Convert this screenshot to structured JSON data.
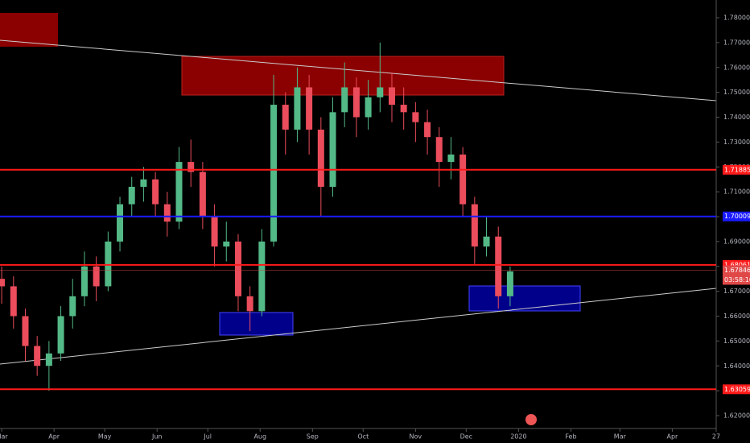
{
  "chart_data": {
    "type": "candlestick",
    "x": [
      0,
      7,
      14,
      21,
      28,
      35,
      42,
      49,
      56,
      63,
      70,
      77,
      84,
      91,
      98,
      105,
      112,
      119,
      126,
      133,
      140,
      147,
      154,
      161,
      168,
      175,
      182,
      189,
      196,
      203,
      210,
      217,
      224,
      231,
      238,
      245,
      252,
      259,
      266,
      273,
      280,
      287,
      294,
      301
    ],
    "open": [
      1.675,
      1.672,
      1.66,
      1.648,
      1.64,
      1.645,
      1.66,
      1.668,
      1.68,
      1.672,
      1.69,
      1.705,
      1.712,
      1.715,
      1.705,
      1.698,
      1.722,
      1.718,
      1.7,
      1.688,
      1.69,
      1.668,
      1.662,
      1.69,
      1.745,
      1.735,
      1.752,
      1.735,
      1.712,
      1.742,
      1.752,
      1.74,
      1.748,
      1.752,
      1.745,
      1.742,
      1.738,
      1.732,
      1.722,
      1.725,
      1.705,
      1.688,
      1.692,
      1.668
    ],
    "high": [
      1.68,
      1.676,
      1.663,
      1.652,
      1.65,
      1.664,
      1.675,
      1.686,
      1.684,
      1.694,
      1.708,
      1.716,
      1.72,
      1.718,
      1.71,
      1.728,
      1.731,
      1.722,
      1.705,
      1.698,
      1.693,
      1.672,
      1.695,
      1.757,
      1.75,
      1.76,
      1.757,
      1.74,
      1.748,
      1.762,
      1.756,
      1.755,
      1.77,
      1.758,
      1.752,
      1.746,
      1.743,
      1.736,
      1.732,
      1.728,
      1.708,
      1.7,
      1.696,
      1.68
    ],
    "low": [
      1.665,
      1.655,
      1.642,
      1.636,
      1.63,
      1.642,
      1.655,
      1.664,
      1.666,
      1.67,
      1.686,
      1.7,
      1.706,
      1.7,
      1.692,
      1.695,
      1.712,
      1.695,
      1.68,
      1.682,
      1.662,
      1.654,
      1.66,
      1.688,
      1.725,
      1.73,
      1.725,
      1.7,
      1.708,
      1.736,
      1.732,
      1.735,
      1.742,
      1.738,
      1.735,
      1.73,
      1.725,
      1.712,
      1.715,
      1.7,
      1.681,
      1.684,
      1.663,
      1.664
    ],
    "close": [
      1.672,
      1.66,
      1.648,
      1.64,
      1.645,
      1.66,
      1.668,
      1.68,
      1.672,
      1.69,
      1.705,
      1.712,
      1.715,
      1.705,
      1.698,
      1.722,
      1.718,
      1.7,
      1.688,
      1.69,
      1.668,
      1.662,
      1.69,
      1.745,
      1.735,
      1.752,
      1.735,
      1.712,
      1.742,
      1.752,
      1.74,
      1.748,
      1.752,
      1.745,
      1.742,
      1.738,
      1.732,
      1.722,
      1.725,
      1.705,
      1.688,
      1.692,
      1.668,
      1.678
    ],
    "up_color": "#53b987",
    "down_color": "#eb4d5c",
    "xlim": [
      -1,
      423
    ],
    "xticks": [
      {
        "value": 0,
        "label": "Mar"
      },
      {
        "value": 31,
        "label": "Apr"
      },
      {
        "value": 61,
        "label": "May"
      },
      {
        "value": 92,
        "label": "Jun"
      },
      {
        "value": 122,
        "label": "Jul"
      },
      {
        "value": 153,
        "label": "Aug"
      },
      {
        "value": 184,
        "label": "Sep"
      },
      {
        "value": 214,
        "label": "Oct"
      },
      {
        "value": 245,
        "label": "Nov"
      },
      {
        "value": 275,
        "label": "Dec"
      },
      {
        "value": 306,
        "label": "2020"
      },
      {
        "value": 337,
        "label": "Feb"
      },
      {
        "value": 366,
        "label": "Mar"
      },
      {
        "value": 397,
        "label": "Apr"
      },
      {
        "value": 423,
        "label": "27"
      }
    ],
    "ylim": [
      1.62,
      1.78
    ],
    "yticks": [
      {
        "value": 1.62,
        "label": "1.62000"
      },
      {
        "value": 1.63,
        "label": "1.63000"
      },
      {
        "value": 1.64,
        "label": "1.64000"
      },
      {
        "value": 1.65,
        "label": "1.65000"
      },
      {
        "value": 1.66,
        "label": "1.66000"
      },
      {
        "value": 1.67,
        "label": "1.67000"
      },
      {
        "value": 1.68,
        "label": "1.68000"
      },
      {
        "value": 1.69,
        "label": "1.69000"
      },
      {
        "value": 1.7,
        "label": "1.70000"
      },
      {
        "value": 1.71,
        "label": "1.71000"
      },
      {
        "value": 1.72,
        "label": "1.72000"
      },
      {
        "value": 1.73,
        "label": "1.73000"
      },
      {
        "value": 1.74,
        "label": "1.74000"
      },
      {
        "value": 1.75,
        "label": "1.75000"
      },
      {
        "value": 1.76,
        "label": "1.76000"
      },
      {
        "value": 1.77,
        "label": "1.77000"
      },
      {
        "value": 1.78,
        "label": "1.78000"
      }
    ],
    "levels": [
      {
        "value": 1.71885,
        "color": "#ff1a1a"
      },
      {
        "value": 1.70009,
        "color": "#1a1aff"
      },
      {
        "value": 1.68061,
        "color": "#ff1a1a"
      },
      {
        "value": 1.63059,
        "color": "#ff1a1a"
      }
    ],
    "last_price": 1.67846,
    "countdown": "03:58:10"
  }
}
